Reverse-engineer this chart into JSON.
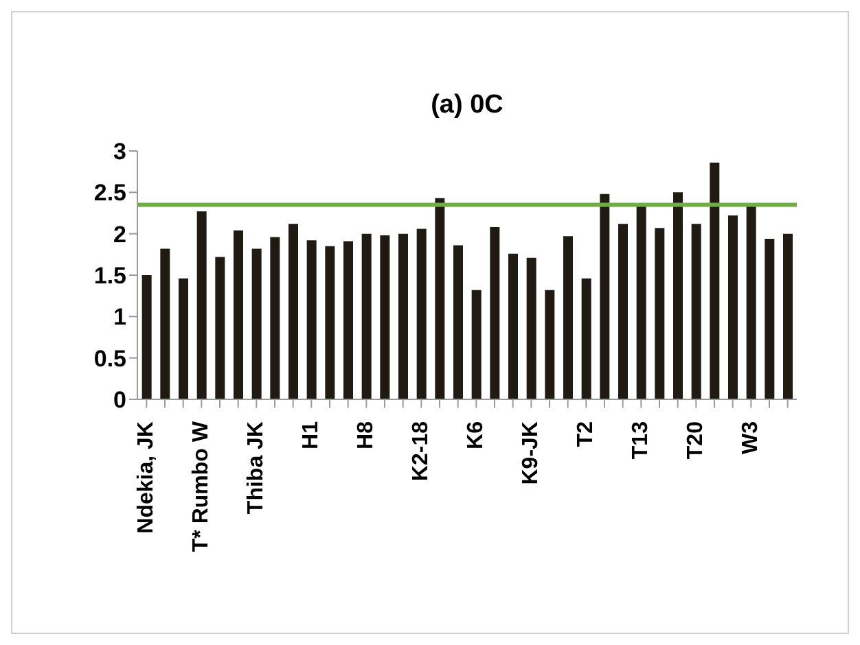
{
  "chart_data": {
    "type": "bar",
    "title": "(a) 0C",
    "categories": [
      "Ndekia, JK",
      null,
      null,
      "T* Rumbo W",
      null,
      null,
      "Thiba JK",
      null,
      null,
      "H1",
      null,
      null,
      "H8",
      null,
      null,
      "K2-18",
      null,
      null,
      "K6",
      null,
      null,
      "K9-JK",
      null,
      null,
      "T2",
      null,
      null,
      "T13",
      null,
      null,
      "T20",
      null,
      null,
      "W3",
      null,
      null
    ],
    "values": [
      1.5,
      1.82,
      1.46,
      2.27,
      1.72,
      2.04,
      1.82,
      1.96,
      2.12,
      1.92,
      1.85,
      1.91,
      2.0,
      1.98,
      2.0,
      2.06,
      2.43,
      1.86,
      1.32,
      2.08,
      1.76,
      1.71,
      1.32,
      1.97,
      1.46,
      2.48,
      2.12,
      2.33,
      2.07,
      2.5,
      2.12,
      2.86,
      2.22,
      2.33,
      1.94,
      2.0
    ],
    "color": "#1f1b12",
    "ylim": [
      0,
      3
    ],
    "yticks": [
      0,
      0.5,
      1,
      1.5,
      2,
      2.5,
      3
    ],
    "grid": false,
    "legend": false,
    "ref_lines": [
      {
        "axis": "y",
        "value": 2.35,
        "color": "#70ad47"
      }
    ]
  }
}
